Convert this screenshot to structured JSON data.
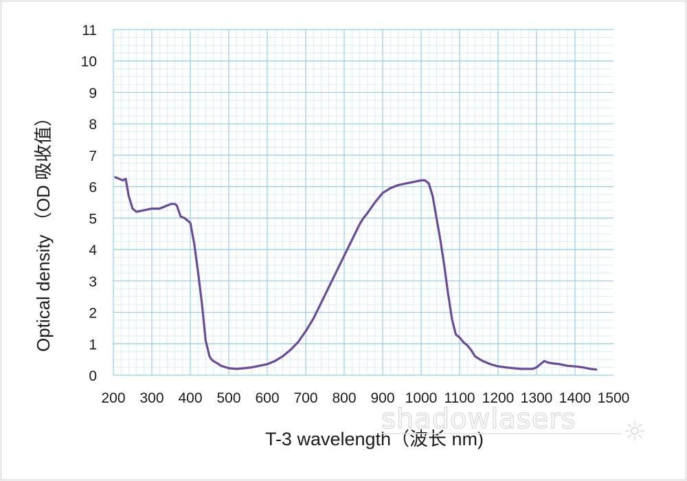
{
  "chart_data": {
    "type": "line",
    "xlabel": "T-3 wavelength（波长 nm)",
    "ylabel": "Optical density （OD 吸收值）",
    "xlim": [
      200,
      1500
    ],
    "ylim": [
      0,
      11
    ],
    "xticks": [
      "200",
      "300",
      "400",
      "500",
      "600",
      "700",
      "800",
      "900",
      "1000",
      "1100",
      "1200",
      "1300",
      "1400",
      "1500"
    ],
    "yticks": [
      "0",
      "1",
      "2",
      "3",
      "4",
      "5",
      "6",
      "7",
      "8",
      "9",
      "10",
      "11"
    ],
    "grid": true,
    "series": [
      {
        "color": "#6a4a9c",
        "x": [
          205,
          215,
          225,
          232,
          240,
          250,
          260,
          280,
          300,
          320,
          340,
          350,
          360,
          365,
          375,
          385,
          400,
          410,
          420,
          430,
          440,
          450,
          455,
          460,
          470,
          480,
          500,
          520,
          540,
          560,
          580,
          600,
          620,
          640,
          660,
          680,
          700,
          720,
          740,
          760,
          780,
          800,
          820,
          840,
          850,
          860,
          880,
          900,
          920,
          940,
          960,
          980,
          1000,
          1010,
          1020,
          1030,
          1040,
          1050,
          1060,
          1070,
          1080,
          1090,
          1100,
          1110,
          1120,
          1130,
          1140,
          1160,
          1180,
          1200,
          1220,
          1240,
          1260,
          1280,
          1290,
          1300,
          1310,
          1320,
          1330,
          1340,
          1360,
          1380,
          1400,
          1420,
          1440,
          1455
        ],
        "y": [
          6.3,
          6.25,
          6.2,
          6.25,
          5.7,
          5.3,
          5.2,
          5.25,
          5.3,
          5.3,
          5.4,
          5.45,
          5.45,
          5.4,
          5.05,
          5.0,
          4.85,
          4.2,
          3.3,
          2.3,
          1.1,
          0.6,
          0.5,
          0.45,
          0.38,
          0.3,
          0.22,
          0.2,
          0.22,
          0.25,
          0.3,
          0.35,
          0.45,
          0.6,
          0.8,
          1.05,
          1.4,
          1.8,
          2.3,
          2.8,
          3.3,
          3.8,
          4.3,
          4.8,
          5.0,
          5.15,
          5.5,
          5.8,
          5.95,
          6.05,
          6.1,
          6.15,
          6.2,
          6.2,
          6.1,
          5.7,
          5.0,
          4.3,
          3.5,
          2.6,
          1.8,
          1.3,
          1.2,
          1.05,
          0.95,
          0.8,
          0.6,
          0.45,
          0.35,
          0.28,
          0.25,
          0.22,
          0.2,
          0.2,
          0.2,
          0.25,
          0.35,
          0.45,
          0.4,
          0.38,
          0.35,
          0.3,
          0.28,
          0.25,
          0.2,
          0.18
        ]
      }
    ]
  },
  "watermark": {
    "text": "shadowlasers"
  }
}
